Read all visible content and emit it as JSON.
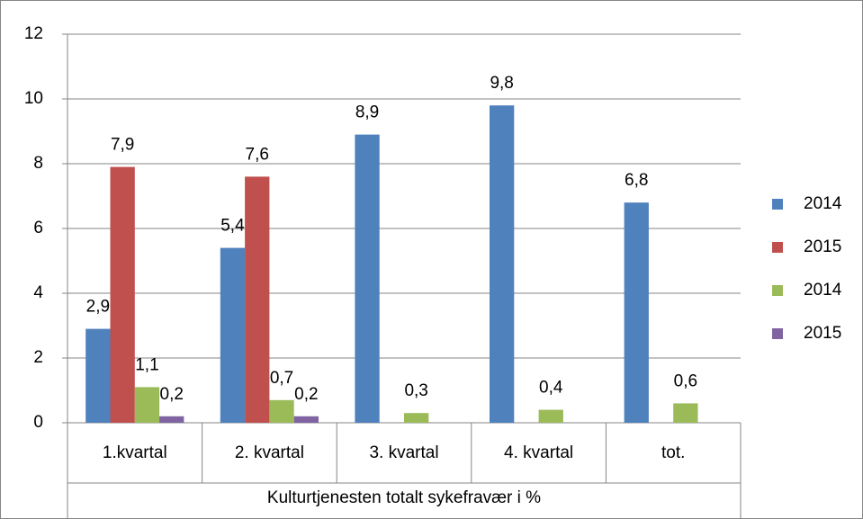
{
  "chart_data": {
    "type": "bar",
    "x_label": "Kulturtjenesten totalt sykefravær i %",
    "categories": [
      "1.kvartal",
      "2. kvartal",
      "3. kvartal",
      "4. kvartal",
      "tot."
    ],
    "series": [
      {
        "name": "2014",
        "color": "#4f81bd",
        "values": [
          2.9,
          5.4,
          8.9,
          9.8,
          6.8
        ],
        "value_labels": [
          "2,9",
          "5,4",
          "8,9",
          "9,8",
          "6,8"
        ]
      },
      {
        "name": "2015",
        "color": "#c0504d",
        "values": [
          7.9,
          7.6,
          null,
          null,
          null
        ],
        "value_labels": [
          "7,9",
          "7,6",
          null,
          null,
          null
        ]
      },
      {
        "name": "2014",
        "color": "#9bbb59",
        "values": [
          1.1,
          0.7,
          0.3,
          0.4,
          0.6
        ],
        "value_labels": [
          "1,1",
          "0,7",
          "0,3",
          "0,4",
          "0,6"
        ]
      },
      {
        "name": "2015",
        "color": "#8064a2",
        "values": [
          0.2,
          0.2,
          null,
          null,
          null
        ],
        "value_labels": [
          "0,2",
          "0,2",
          null,
          null,
          null
        ]
      }
    ],
    "ylim": [
      0,
      12
    ],
    "yticks": [
      0,
      2,
      4,
      6,
      8,
      10,
      12
    ],
    "grid": true,
    "legend": "right"
  }
}
